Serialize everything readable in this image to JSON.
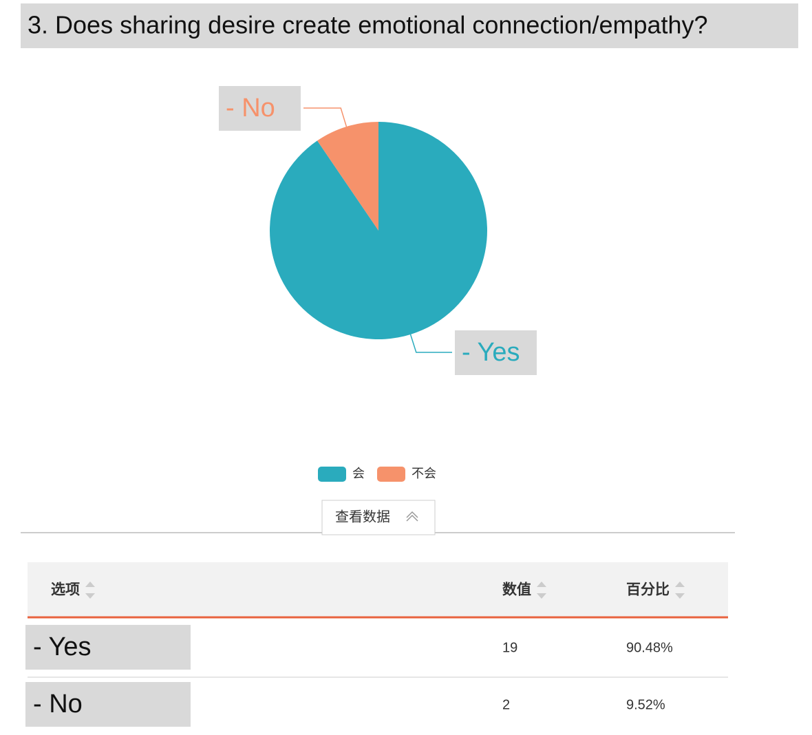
{
  "chart_data": {
    "type": "pie",
    "title": "3. Does sharing desire create emotional connection/empathy?",
    "categories": [
      "- Yes",
      "- No"
    ],
    "values": [
      90.48,
      9.52
    ],
    "colors": [
      "#2aabbd",
      "#f6926b"
    ],
    "legend": [
      "会",
      "不会"
    ]
  },
  "button": "查看数据",
  "table": {
    "headers": [
      "选项",
      "数值",
      "百分比"
    ],
    "rows": [
      [
        "- Yes",
        19,
        "90.48%"
      ],
      [
        "- No",
        2,
        "9.52%"
      ]
    ]
  }
}
